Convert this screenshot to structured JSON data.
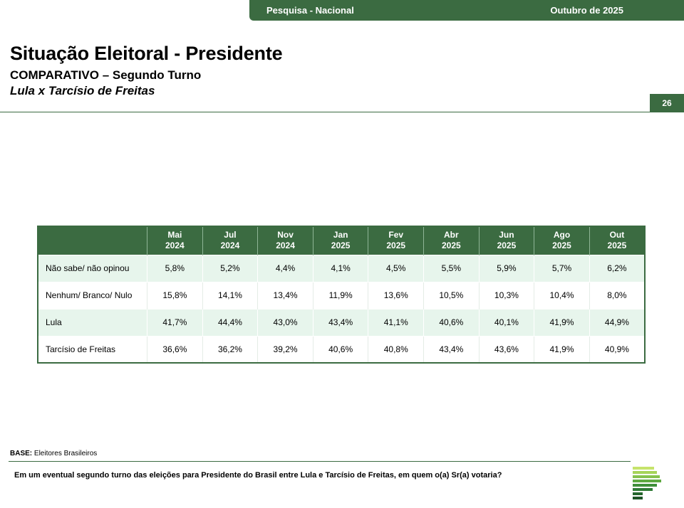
{
  "header": {
    "survey_label": "Pesquisa - Nacional",
    "date_label": "Outubro de 2025",
    "page_number": "26"
  },
  "title": "Situação Eleitoral - Presidente",
  "subtitle": "COMPARATIVO – Segundo Turno",
  "subsubtitle": "Lula x Tarcísio de Freitas",
  "table": {
    "columns": [
      {
        "month": "Mai",
        "year": "2024"
      },
      {
        "month": "Jul",
        "year": "2024"
      },
      {
        "month": "Nov",
        "year": "2024"
      },
      {
        "month": "Jan",
        "year": "2025"
      },
      {
        "month": "Fev",
        "year": "2025"
      },
      {
        "month": "Abr",
        "year": "2025"
      },
      {
        "month": "Jun",
        "year": "2025"
      },
      {
        "month": "Ago",
        "year": "2025"
      },
      {
        "month": "Out",
        "year": "2025"
      }
    ],
    "rows": [
      {
        "label": "Não sabe/ não opinou",
        "values": [
          "5,8%",
          "5,2%",
          "4,4%",
          "4,1%",
          "4,5%",
          "5,5%",
          "5,9%",
          "5,7%",
          "6,2%"
        ]
      },
      {
        "label": "Nenhum/ Branco/ Nulo",
        "values": [
          "15,8%",
          "14,1%",
          "13,4%",
          "11,9%",
          "13,6%",
          "10,5%",
          "10,3%",
          "10,4%",
          "8,0%"
        ]
      },
      {
        "label": "Lula",
        "values": [
          "41,7%",
          "44,4%",
          "43,0%",
          "43,4%",
          "41,1%",
          "40,6%",
          "40,1%",
          "41,9%",
          "44,9%"
        ]
      },
      {
        "label": "Tarcísio de Freitas",
        "values": [
          "36,6%",
          "36,2%",
          "39,2%",
          "40,6%",
          "40,8%",
          "43,4%",
          "43,6%",
          "41,9%",
          "40,9%"
        ]
      }
    ]
  },
  "footer": {
    "base_label": "BASE:",
    "base_value": "Eleitores Brasileiros",
    "question": "Em um eventual segundo turno das eleições para Presidente do Brasil entre Lula e Tarcísio de Freitas, em quem o(a) Sr(a) votaria?"
  },
  "colors": {
    "brand_green": "#3b6b41",
    "row_tint": "#e7f5ec"
  }
}
